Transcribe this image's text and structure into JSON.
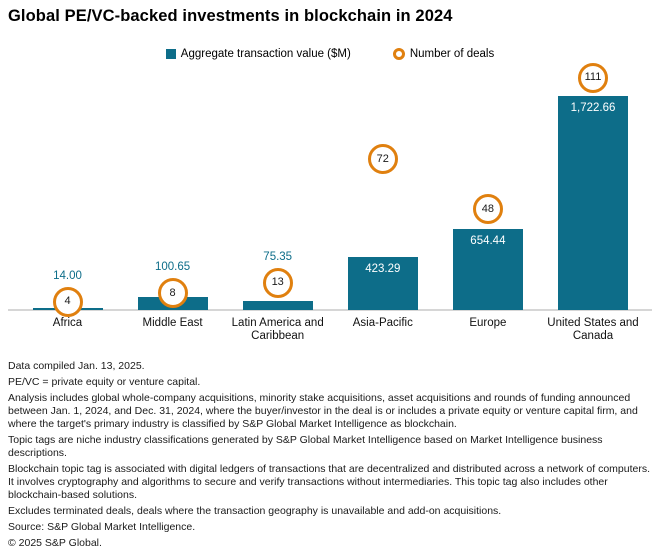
{
  "title": "Global PE/VC-backed investments in blockchain in 2024",
  "legend": {
    "value_series_label": "Aggregate transaction value ($M)",
    "deals_series_label": "Number of deals"
  },
  "colors": {
    "bar_teal": "#0d6d89",
    "deals_orange": "#e0800f",
    "baseline_gray": "#d6d6d6",
    "value_label_inside": "#ffffff",
    "text": "#1a1a1a"
  },
  "chart_data": {
    "type": "bar",
    "title": "Global PE/VC-backed investments in blockchain in 2024",
    "categories": [
      "Africa",
      "Middle East",
      "Latin America and Caribbean",
      "Asia-Pacific",
      "Europe",
      "United States and Canada"
    ],
    "series": [
      {
        "name": "Aggregate transaction value ($M)",
        "role": "bars",
        "values": [
          14.0,
          100.65,
          75.35,
          423.29,
          654.44,
          1722.66
        ],
        "value_labels": [
          "14.00",
          "100.65",
          "75.35",
          "423.29",
          "654.44",
          "1,722.66"
        ]
      },
      {
        "name": "Number of deals",
        "role": "circle-markers",
        "values": [
          4,
          8,
          13,
          72,
          48,
          111
        ]
      }
    ],
    "xlabel": "",
    "ylabel": "",
    "value_axis_range": [
      0,
      1800
    ],
    "deals_axis_range": [
      0,
      115
    ],
    "grid": false,
    "legend_position": "top-center"
  },
  "footnotes": [
    "Data compiled Jan. 13, 2025.",
    "PE/VC = private equity or venture capital.",
    "Analysis includes global whole-company acquisitions, minority stake acquisitions, asset acquisitions and rounds of funding announced between Jan. 1, 2024, and Dec. 31, 2024, where the buyer/investor in the deal is or includes a private equity or venture capital firm, and where the target's primary industry is classified by S&P Global Market Intelligence as blockchain.",
    "Topic tags are niche industry classifications generated by S&P Global Market Intelligence based on Market Intelligence business descriptions.",
    "Blockchain topic tag is associated with digital ledgers of transactions that are decentralized and distributed across a network of computers. It involves cryptography and algorithms to secure and verify transactions without intermediaries. This topic tag also includes other blockchain-based solutions.",
    "Excludes terminated deals,  deals where the transaction geography is unavailable and add-on acquisitions.",
    "Source: S&P Global Market Intelligence.",
    "© 2025 S&P Global."
  ]
}
